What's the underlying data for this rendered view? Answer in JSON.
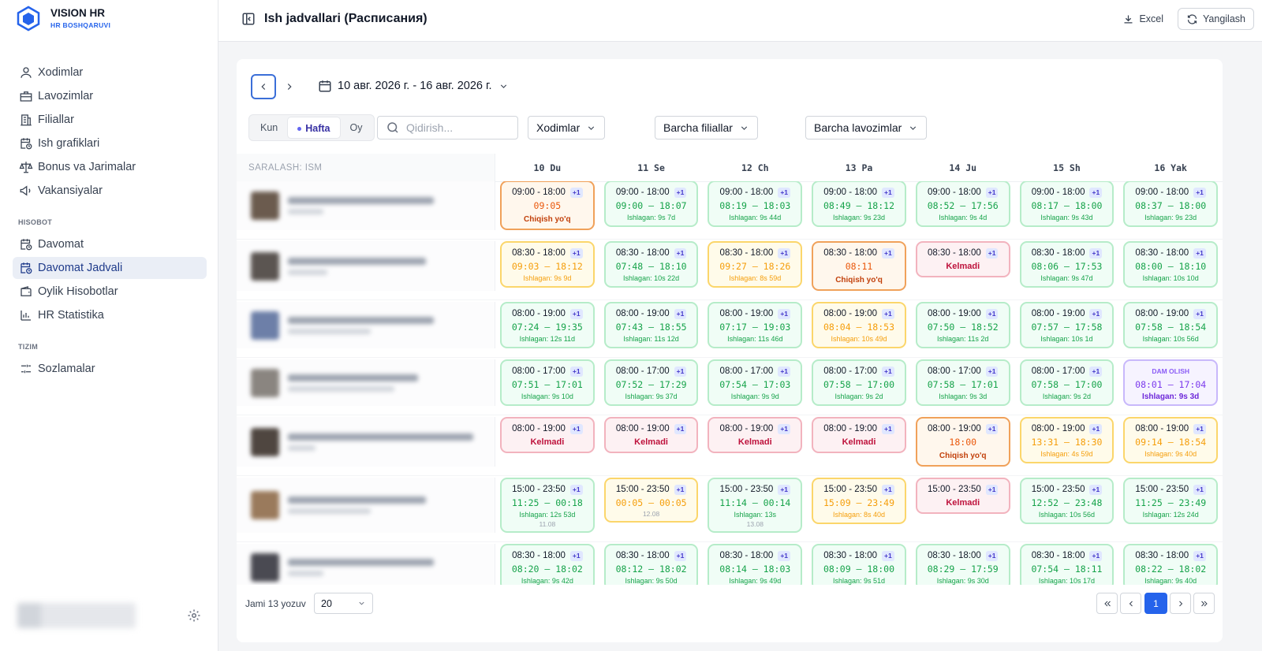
{
  "sidebar": {
    "brand": {
      "title": "VISION HR",
      "subtitle": "HR BOSHQARUVI"
    },
    "groups": [
      {
        "items": [
          {
            "label": "Xodimlar"
          },
          {
            "label": "Lavozimlar"
          },
          {
            "label": "Filiallar"
          },
          {
            "label": "Ish grafiklari"
          },
          {
            "label": "Bonus va Jarimalar"
          },
          {
            "label": "Vakansiyalar"
          }
        ]
      },
      {
        "heading": "HISOBOT",
        "items": [
          {
            "label": "Davomat"
          },
          {
            "label": "Davomat Jadvali",
            "active": true
          },
          {
            "label": "Oylik Hisobotlar"
          },
          {
            "label": "HR Statistika"
          }
        ]
      },
      {
        "heading": "TIZIM",
        "items": [
          {
            "label": "Sozlamalar"
          }
        ]
      }
    ]
  },
  "header": {
    "title": "Ish jadvallari (Расписания)",
    "actions": [
      "Excel",
      "Yangilash"
    ]
  },
  "toolbar": {
    "date_range": "10 авг. 2026 г. - 16 авг. 2026 г.",
    "views": [
      {
        "label": "Kun"
      },
      {
        "label": "Hafta",
        "active": true
      },
      {
        "label": "Oy"
      }
    ],
    "search_placeholder": "Qidirish...",
    "filters": [
      "Xodimlar",
      "Barcha filiallar",
      "Barcha lavozimlar"
    ]
  },
  "table": {
    "sort_label": "SARALASH: ISM",
    "days": [
      "10 Du",
      "11 Se",
      "12 Ch",
      "13 Pa",
      "14 Ju",
      "15 Sh",
      "16 Yak"
    ],
    "rows": [
      [
        {
          "shift": "09:00 - 18:00",
          "badge": "+1",
          "time": "09:05",
          "note": "Chiqish yo'q",
          "tone": "orange"
        },
        {
          "shift": "09:00 - 18:00",
          "badge": "+1",
          "time": "09:00 — 18:07",
          "worked": "Ishlagan: 9s 7d",
          "tone": "green"
        },
        {
          "shift": "09:00 - 18:00",
          "badge": "+1",
          "time": "08:19 — 18:03",
          "worked": "Ishlagan: 9s 44d",
          "tone": "green"
        },
        {
          "shift": "09:00 - 18:00",
          "badge": "+1",
          "time": "08:49 — 18:12",
          "worked": "Ishlagan: 9s 23d",
          "tone": "green"
        },
        {
          "shift": "09:00 - 18:00",
          "badge": "+1",
          "time": "08:52 — 17:56",
          "worked": "Ishlagan: 9s 4d",
          "tone": "green"
        },
        {
          "shift": "09:00 - 18:00",
          "badge": "+1",
          "time": "08:17 — 18:00",
          "worked": "Ishlagan: 9s 43d",
          "tone": "green"
        },
        {
          "shift": "09:00 - 18:00",
          "badge": "+1",
          "time": "08:37 — 18:00",
          "worked": "Ishlagan: 9s 23d",
          "tone": "green"
        }
      ],
      [
        {
          "shift": "08:30 - 18:00",
          "badge": "+1",
          "time": "09:03 — 18:12",
          "worked": "Ishlagan: 9s 9d",
          "tone": "yellow"
        },
        {
          "shift": "08:30 - 18:00",
          "badge": "+1",
          "time": "07:48 — 18:10",
          "worked": "Ishlagan: 10s 22d",
          "tone": "green"
        },
        {
          "shift": "08:30 - 18:00",
          "badge": "+1",
          "time": "09:27 — 18:26",
          "worked": "Ishlagan: 8s 59d",
          "tone": "yellow"
        },
        {
          "shift": "08:30 - 18:00",
          "badge": "+1",
          "time": "08:11",
          "note": "Chiqish yo'q",
          "tone": "orange"
        },
        {
          "shift": "08:30 - 18:00",
          "badge": "+1",
          "note": "Kelmadi",
          "tone": "red"
        },
        {
          "shift": "08:30 - 18:00",
          "badge": "+1",
          "time": "08:06 — 17:53",
          "worked": "Ishlagan: 9s 47d",
          "tone": "green"
        },
        {
          "shift": "08:30 - 18:00",
          "badge": "+1",
          "time": "08:00 — 18:10",
          "worked": "Ishlagan: 10s 10d",
          "tone": "green"
        }
      ],
      [
        {
          "shift": "08:00 - 19:00",
          "badge": "+1",
          "time": "07:24 — 19:35",
          "worked": "Ishlagan: 12s 11d",
          "tone": "green"
        },
        {
          "shift": "08:00 - 19:00",
          "badge": "+1",
          "time": "07:43 — 18:55",
          "worked": "Ishlagan: 11s 12d",
          "tone": "green"
        },
        {
          "shift": "08:00 - 19:00",
          "badge": "+1",
          "time": "07:17 — 19:03",
          "worked": "Ishlagan: 11s 46d",
          "tone": "green"
        },
        {
          "shift": "08:00 - 19:00",
          "badge": "+1",
          "time": "08:04 — 18:53",
          "worked": "Ishlagan: 10s 49d",
          "tone": "yellow"
        },
        {
          "shift": "08:00 - 19:00",
          "badge": "+1",
          "time": "07:50 — 18:52",
          "worked": "Ishlagan: 11s 2d",
          "tone": "green"
        },
        {
          "shift": "08:00 - 19:00",
          "badge": "+1",
          "time": "07:57 — 17:58",
          "worked": "Ishlagan: 10s 1d",
          "tone": "green"
        },
        {
          "shift": "08:00 - 19:00",
          "badge": "+1",
          "time": "07:58 — 18:54",
          "worked": "Ishlagan: 10s 56d",
          "tone": "green"
        }
      ],
      [
        {
          "shift": "08:00 - 17:00",
          "badge": "+1",
          "time": "07:51 — 17:01",
          "worked": "Ishlagan: 9s 10d",
          "tone": "green"
        },
        {
          "shift": "08:00 - 17:00",
          "badge": "+1",
          "time": "07:52 — 17:29",
          "worked": "Ishlagan: 9s 37d",
          "tone": "green"
        },
        {
          "shift": "08:00 - 17:00",
          "badge": "+1",
          "time": "07:54 — 17:03",
          "worked": "Ishlagan: 9s 9d",
          "tone": "green"
        },
        {
          "shift": "08:00 - 17:00",
          "badge": "+1",
          "time": "07:58 — 17:00",
          "worked": "Ishlagan: 9s 2d",
          "tone": "green"
        },
        {
          "shift": "08:00 - 17:00",
          "badge": "+1",
          "time": "07:58 — 17:01",
          "worked": "Ishlagan: 9s 3d",
          "tone": "green"
        },
        {
          "shift": "08:00 - 17:00",
          "badge": "+1",
          "time": "07:58 — 17:00",
          "worked": "Ishlagan: 9s 2d",
          "tone": "green"
        },
        {
          "label": "DAM OLISH",
          "time": "08:01 — 17:04",
          "worked": "Ishlagan: 9s 3d",
          "tone": "purple"
        }
      ],
      [
        {
          "shift": "08:00 - 19:00",
          "badge": "+1",
          "note": "Kelmadi",
          "tone": "red"
        },
        {
          "shift": "08:00 - 19:00",
          "badge": "+1",
          "note": "Kelmadi",
          "tone": "red"
        },
        {
          "shift": "08:00 - 19:00",
          "badge": "+1",
          "note": "Kelmadi",
          "tone": "red"
        },
        {
          "shift": "08:00 - 19:00",
          "badge": "+1",
          "note": "Kelmadi",
          "tone": "red"
        },
        {
          "shift": "08:00 - 19:00",
          "badge": "+1",
          "time": "18:00",
          "note": "Chiqish yo'q",
          "tone": "orange"
        },
        {
          "shift": "08:00 - 19:00",
          "badge": "+1",
          "time": "13:31 — 18:30",
          "worked": "Ishlagan: 4s 59d",
          "tone": "yellow"
        },
        {
          "shift": "08:00 - 19:00",
          "badge": "+1",
          "time": "09:14 — 18:54",
          "worked": "Ishlagan: 9s 40d",
          "tone": "yellow"
        }
      ],
      [
        {
          "shift": "15:00 - 23:50",
          "badge": "+1",
          "time": "11:25 — 00:18",
          "worked": "Ishlagan: 12s 53d",
          "extra": "11.08",
          "tone": "green"
        },
        {
          "shift": "15:00 - 23:50",
          "badge": "+1",
          "time": "00:05 — 00:05",
          "extra": "12.08",
          "tone": "yellow"
        },
        {
          "shift": "15:00 - 23:50",
          "badge": "+1",
          "time": "11:14 — 00:14",
          "worked": "Ishlagan: 13s",
          "extra": "13.08",
          "tone": "green"
        },
        {
          "shift": "15:00 - 23:50",
          "badge": "+1",
          "time": "15:09 — 23:49",
          "worked": "Ishlagan: 8s 40d",
          "tone": "yellow"
        },
        {
          "shift": "15:00 - 23:50",
          "badge": "+1",
          "note": "Kelmadi",
          "tone": "red"
        },
        {
          "shift": "15:00 - 23:50",
          "badge": "+1",
          "time": "12:52 — 23:48",
          "worked": "Ishlagan: 10s 56d",
          "tone": "green"
        },
        {
          "shift": "15:00 - 23:50",
          "badge": "+1",
          "time": "11:25 — 23:49",
          "worked": "Ishlagan: 12s 24d",
          "tone": "green"
        }
      ],
      [
        {
          "shift": "08:30 - 18:00",
          "badge": "+1",
          "time": "08:20 — 18:02",
          "worked": "Ishlagan: 9s 42d",
          "tone": "green"
        },
        {
          "shift": "08:30 - 18:00",
          "badge": "+1",
          "time": "08:12 — 18:02",
          "worked": "Ishlagan: 9s 50d",
          "tone": "green"
        },
        {
          "shift": "08:30 - 18:00",
          "badge": "+1",
          "time": "08:14 — 18:03",
          "worked": "Ishlagan: 9s 49d",
          "tone": "green"
        },
        {
          "shift": "08:30 - 18:00",
          "badge": "+1",
          "time": "08:09 — 18:00",
          "worked": "Ishlagan: 9s 51d",
          "tone": "green"
        },
        {
          "shift": "08:30 - 18:00",
          "badge": "+1",
          "time": "08:29 — 17:59",
          "worked": "Ishlagan: 9s 30d",
          "tone": "green"
        },
        {
          "shift": "08:30 - 18:00",
          "badge": "+1",
          "time": "07:54 — 18:11",
          "worked": "Ishlagan: 10s 17d",
          "tone": "green"
        },
        {
          "shift": "08:30 - 18:00",
          "badge": "+1",
          "time": "08:22 — 18:02",
          "worked": "Ishlagan: 9s 40d",
          "tone": "green"
        }
      ]
    ]
  },
  "footer": {
    "total": "Jami 13 yozuv",
    "page_size": "20",
    "page": "1"
  }
}
